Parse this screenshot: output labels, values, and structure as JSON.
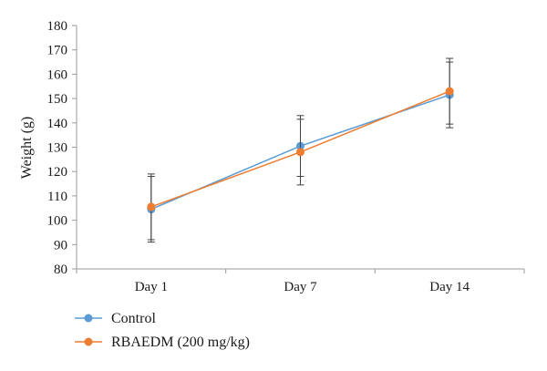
{
  "chart_data": {
    "type": "line",
    "title": "",
    "xlabel": "",
    "ylabel": "Weight (g)",
    "ylim": [
      80,
      180
    ],
    "yticks": [
      80,
      90,
      100,
      110,
      120,
      130,
      140,
      150,
      160,
      170,
      180
    ],
    "grid": false,
    "legend_position": "bottom-left",
    "categories": [
      "Day 1",
      "Day 7",
      "Day 14"
    ],
    "series": [
      {
        "name": "Control",
        "color": "#5b9bd5",
        "values": [
          104.5,
          130.5,
          151.5
        ],
        "error": [
          13.5,
          12.5,
          13.5
        ]
      },
      {
        "name": "RBAEDM (200 mg/kg)",
        "color": "#ed7d31",
        "values": [
          105.5,
          128,
          153
        ],
        "error": [
          13.5,
          13.5,
          13.5
        ]
      }
    ]
  }
}
